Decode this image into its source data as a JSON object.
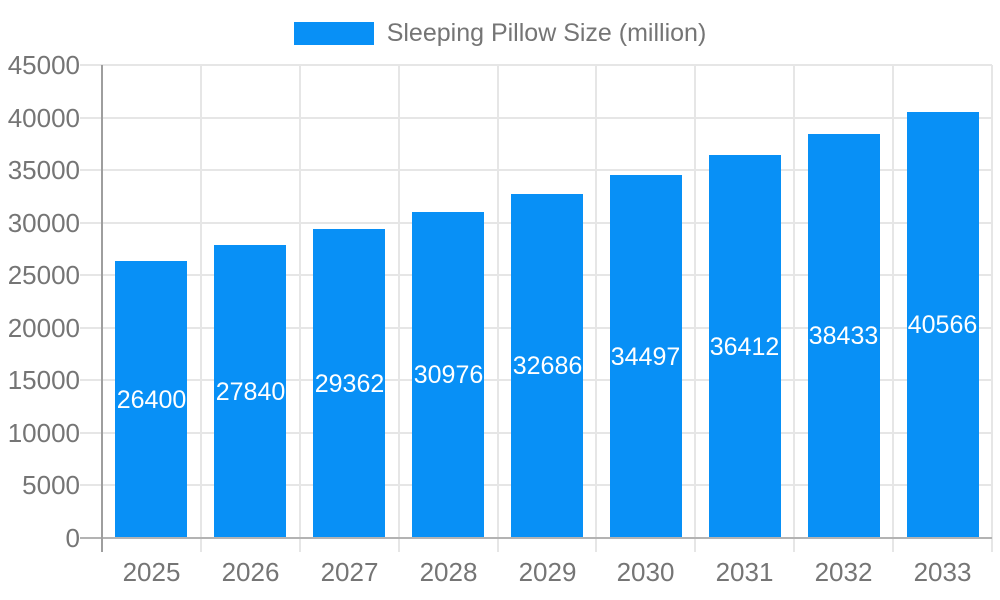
{
  "legend": {
    "label": "Sleeping Pillow Size (million)"
  },
  "chart_data": {
    "type": "bar",
    "title": "",
    "legend_entries": [
      "Sleeping Pillow Size (million)"
    ],
    "legend_position": "top-center",
    "categories": [
      "2025",
      "2026",
      "2027",
      "2028",
      "2029",
      "2030",
      "2031",
      "2032",
      "2033"
    ],
    "series": [
      {
        "name": "Sleeping Pillow Size (million)",
        "values": [
          26400,
          27840,
          29362,
          30976,
          32686,
          34497,
          36412,
          38433,
          40566
        ]
      }
    ],
    "value_labels_shown": true,
    "xlabel": "",
    "ylabel": "",
    "ylim": [
      0,
      45000
    ],
    "yticks": [
      0,
      5000,
      10000,
      15000,
      20000,
      25000,
      30000,
      35000,
      40000,
      45000
    ],
    "grid": true,
    "colors": {
      "bar": "#0890f6",
      "gridline": "#e6e6e6",
      "axis_line": "#9e9e9e",
      "baseline": "#b3b3b3",
      "axis_text": "#757575",
      "value_text": "#ffffff",
      "background": "#ffffff"
    }
  }
}
